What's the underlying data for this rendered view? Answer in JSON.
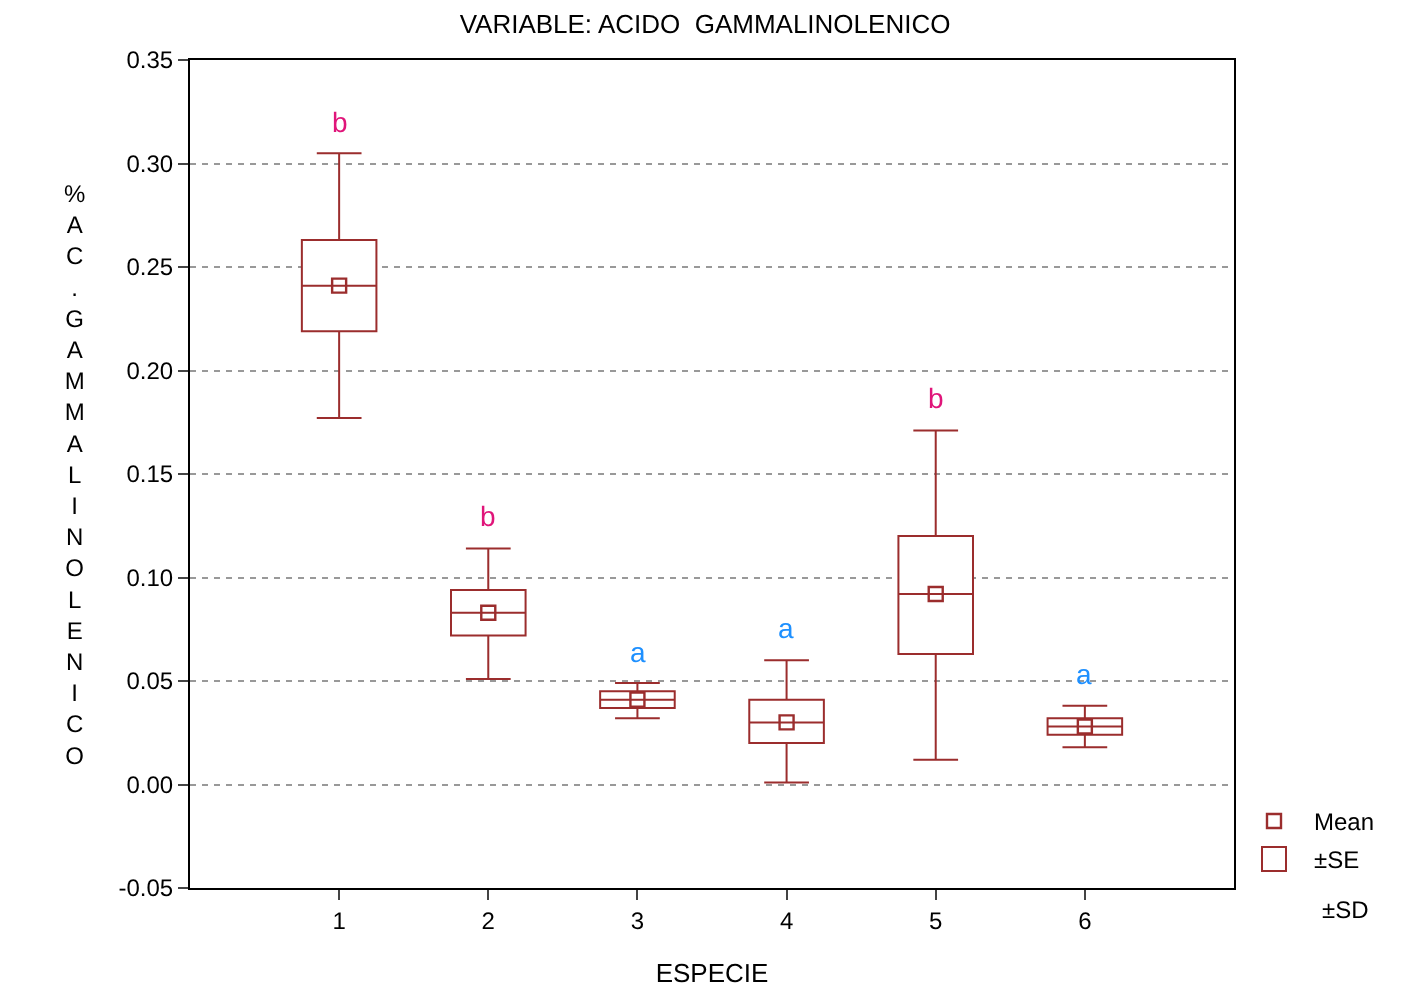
{
  "chart_data": {
    "type": "box",
    "title": "VARIABLE: ACIDO  GAMMALINOLENICO",
    "xlabel": "ESPECIE",
    "ylabel": "% AC. GAMMALINOLENICO",
    "categories": [
      "1",
      "2",
      "3",
      "4",
      "5",
      "6"
    ],
    "ylim": [
      -0.05,
      0.35
    ],
    "yticks": [
      {
        "value": -0.05,
        "label": "-0.05"
      },
      {
        "value": 0,
        "label": "0.00"
      },
      {
        "value": 0.05,
        "label": "0.05"
      },
      {
        "value": 0.1,
        "label": "0.10"
      },
      {
        "value": 0.15,
        "label": "0.15"
      },
      {
        "value": 0.2,
        "label": "0.20"
      },
      {
        "value": 0.25,
        "label": "0.25"
      },
      {
        "value": 0.3,
        "label": "0.30"
      },
      {
        "value": 0.35,
        "label": "0.35"
      }
    ],
    "grid": "y",
    "legend": "bottom right",
    "marker": "square",
    "series": [
      {
        "name": "±SE",
        "color": "#9b2d2d",
        "boxes": [
          {
            "low": 0.177,
            "q1": 0.219,
            "median": 0.241,
            "q3": 0.263,
            "high": 0.305,
            "mean": 0.241
          },
          {
            "low": 0.051,
            "q1": 0.072,
            "median": 0.083,
            "q3": 0.094,
            "high": 0.114,
            "mean": 0.083
          },
          {
            "low": 0.032,
            "q1": 0.037,
            "median": 0.041,
            "q3": 0.045,
            "high": 0.049,
            "mean": 0.041
          },
          {
            "low": 0.001,
            "q1": 0.02,
            "median": 0.03,
            "q3": 0.041,
            "high": 0.06,
            "mean": 0.03
          },
          {
            "low": 0.012,
            "q1": 0.063,
            "median": 0.092,
            "q3": 0.12,
            "high": 0.171,
            "mean": 0.092
          },
          {
            "low": 0.018,
            "q1": 0.024,
            "median": 0.028,
            "q3": 0.032,
            "high": 0.038,
            "mean": 0.028
          }
        ]
      }
    ],
    "annotations": [
      "b",
      "b",
      "a",
      "a",
      "b",
      "a",
      "Mean",
      "±SD"
    ]
  }
}
